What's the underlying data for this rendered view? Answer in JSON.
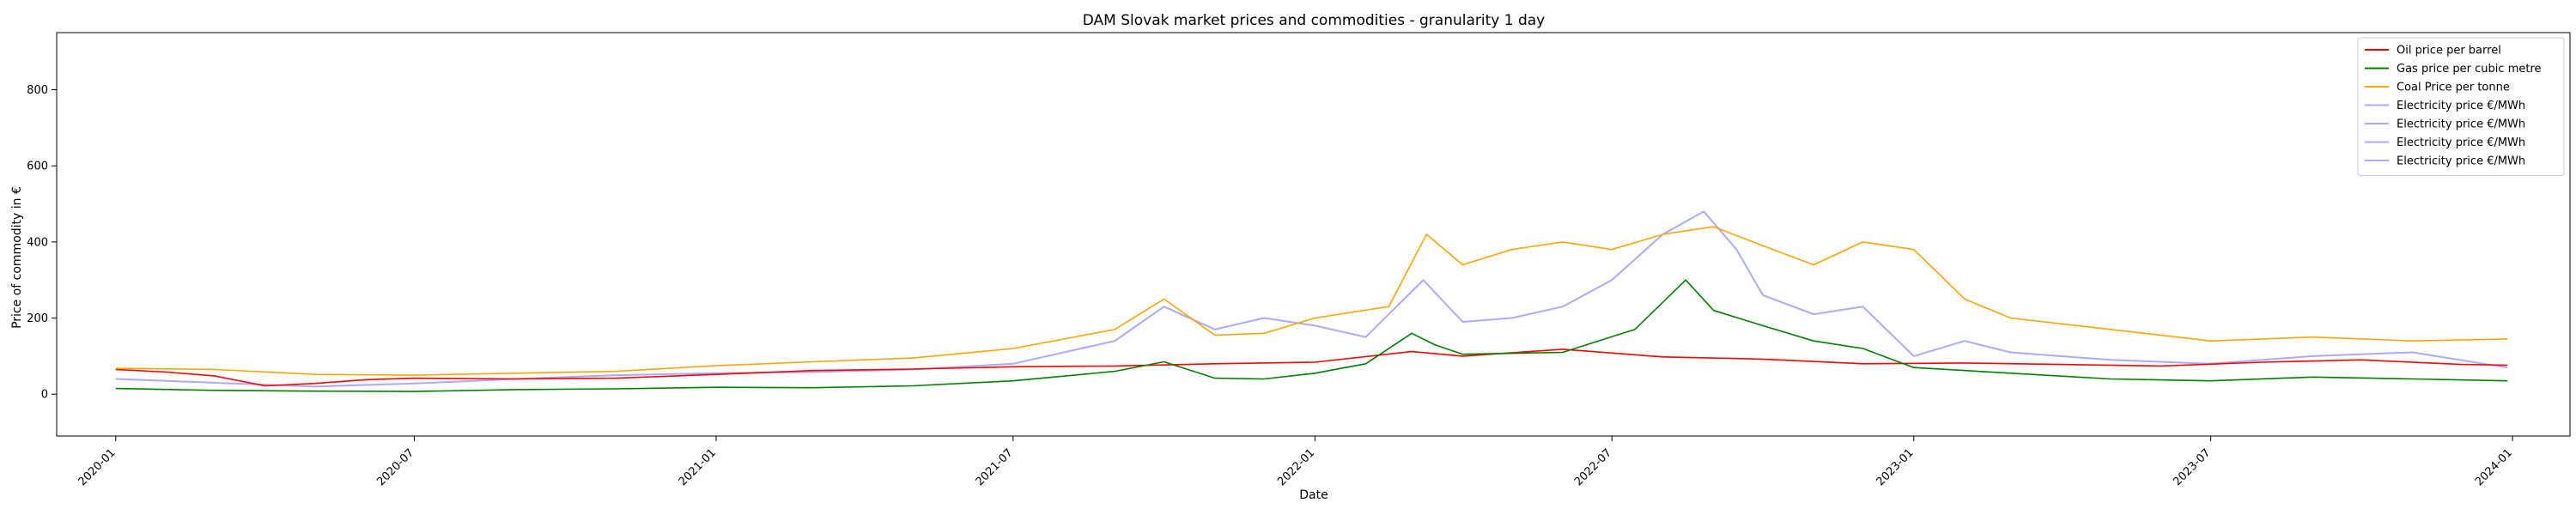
{
  "chart_data": {
    "type": "line",
    "title": "DAM Slovak market prices and commodities - granularity 1 day",
    "xlabel": "Date",
    "ylabel": "Price of commodity in €",
    "xlim": [
      "2019-11-26",
      "2024-02-05"
    ],
    "ylim": [
      -110,
      950
    ],
    "yticks": [
      0,
      200,
      400,
      600,
      800
    ],
    "xticks": [
      "2020-01",
      "2020-07",
      "2021-01",
      "2021-07",
      "2022-01",
      "2022-07",
      "2023-01",
      "2023-07",
      "2024-01"
    ],
    "grid": false,
    "legend_position": "top-right",
    "series": [
      {
        "name": "Oil price per barrel",
        "color": "#ff0000",
        "x": [
          "2020-01-01",
          "2020-02-01",
          "2020-03-01",
          "2020-04-01",
          "2020-05-01",
          "2020-06-01",
          "2020-07-01",
          "2020-09-01",
          "2020-11-01",
          "2021-01-01",
          "2021-03-01",
          "2021-05-01",
          "2021-07-01",
          "2021-09-01",
          "2021-11-01",
          "2022-01-01",
          "2022-03-01",
          "2022-04-01",
          "2022-06-01",
          "2022-08-01",
          "2022-10-01",
          "2022-12-01",
          "2023-02-01",
          "2023-04-01",
          "2023-06-01",
          "2023-08-01",
          "2023-10-01",
          "2023-12-01",
          "2023-12-29"
        ],
        "y": [
          65,
          58,
          48,
          22,
          28,
          38,
          42,
          40,
          42,
          52,
          62,
          66,
          72,
          74,
          80,
          84,
          112,
          100,
          118,
          98,
          92,
          80,
          82,
          78,
          74,
          84,
          90,
          78,
          76
        ]
      },
      {
        "name": "Gas price per cubic metre",
        "color": "#008000",
        "x": [
          "2020-01-01",
          "2020-03-01",
          "2020-05-01",
          "2020-07-01",
          "2020-09-01",
          "2020-11-01",
          "2021-01-01",
          "2021-03-01",
          "2021-05-01",
          "2021-07-01",
          "2021-09-01",
          "2021-10-01",
          "2021-11-01",
          "2021-12-01",
          "2022-01-01",
          "2022-02-01",
          "2022-03-01",
          "2022-03-15",
          "2022-04-01",
          "2022-06-01",
          "2022-07-15",
          "2022-08-15",
          "2022-09-01",
          "2022-10-01",
          "2022-11-01",
          "2022-12-01",
          "2023-01-01",
          "2023-03-01",
          "2023-05-01",
          "2023-07-01",
          "2023-09-01",
          "2023-11-01",
          "2023-12-29"
        ],
        "y": [
          15,
          10,
          8,
          7,
          12,
          14,
          18,
          17,
          22,
          35,
          60,
          85,
          42,
          40,
          55,
          80,
          160,
          130,
          105,
          110,
          170,
          300,
          220,
          180,
          140,
          120,
          70,
          55,
          40,
          35,
          45,
          40,
          35
        ]
      },
      {
        "name": "Coal Price per tonne",
        "color": "#ffa500",
        "x": [
          "2020-01-01",
          "2020-03-01",
          "2020-05-01",
          "2020-07-01",
          "2020-09-01",
          "2020-11-01",
          "2021-01-01",
          "2021-03-01",
          "2021-05-01",
          "2021-07-01",
          "2021-09-01",
          "2021-10-01",
          "2021-11-01",
          "2021-12-01",
          "2022-01-01",
          "2022-02-15",
          "2022-03-10",
          "2022-04-01",
          "2022-05-01",
          "2022-06-01",
          "2022-07-01",
          "2022-08-01",
          "2022-09-01",
          "2022-10-01",
          "2022-11-01",
          "2022-12-01",
          "2023-01-01",
          "2023-02-01",
          "2023-03-01",
          "2023-05-01",
          "2023-07-01",
          "2023-09-01",
          "2023-11-01",
          "2023-12-29"
        ],
        "y": [
          68,
          65,
          52,
          50,
          55,
          60,
          75,
          85,
          95,
          120,
          170,
          250,
          155,
          160,
          200,
          230,
          420,
          340,
          380,
          400,
          380,
          420,
          440,
          390,
          340,
          400,
          380,
          250,
          200,
          170,
          140,
          150,
          140,
          145
        ]
      },
      {
        "name": "Electricity price €/MWh",
        "color": "#aaaaff",
        "x": [
          "2020-01-01",
          "2020-03-01",
          "2020-05-01",
          "2020-07-01",
          "2020-09-01",
          "2020-11-01",
          "2021-01-01",
          "2021-03-01",
          "2021-05-01",
          "2021-07-01",
          "2021-09-01",
          "2021-10-01",
          "2021-11-01",
          "2021-12-01",
          "2022-01-01",
          "2022-02-01",
          "2022-03-08",
          "2022-04-01",
          "2022-05-01",
          "2022-06-01",
          "2022-07-01",
          "2022-08-01",
          "2022-08-26",
          "2022-09-15",
          "2022-10-01",
          "2022-11-01",
          "2022-12-01",
          "2023-01-01",
          "2023-02-01",
          "2023-03-01",
          "2023-05-01",
          "2023-07-01",
          "2023-09-01",
          "2023-11-01",
          "2023-12-29"
        ],
        "y": [
          40,
          30,
          20,
          28,
          40,
          50,
          55,
          58,
          65,
          80,
          140,
          230,
          170,
          200,
          180,
          150,
          300,
          190,
          200,
          230,
          300,
          420,
          480,
          380,
          260,
          210,
          230,
          100,
          140,
          110,
          90,
          80,
          100,
          110,
          70
        ]
      },
      {
        "name": "Electricity price €/MWh",
        "color": "#aaaaff",
        "x": [],
        "y": []
      },
      {
        "name": "Electricity price €/MWh",
        "color": "#aaaaff",
        "x": [],
        "y": []
      },
      {
        "name": "Electricity price €/MWh",
        "color": "#aaaaff",
        "x": [],
        "y": []
      }
    ]
  }
}
